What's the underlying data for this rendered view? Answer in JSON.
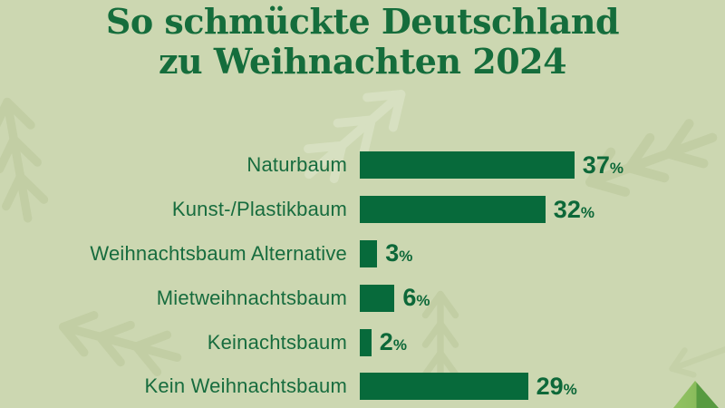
{
  "title": {
    "line1": "So schmückte Deutschland",
    "line2": "zu Weihnachten 2024"
  },
  "chart_data": {
    "type": "bar",
    "orientation": "horizontal",
    "title": "So schmückte Deutschland zu Weihnachten 2024",
    "categories": [
      "Naturbaum",
      "Kunst-/Plastikbaum",
      "Weihnachtsbaum Alternative",
      "Mietweihnachtsbaum",
      "Keinachtsbaum",
      "Kein Weihnachtsbaum"
    ],
    "values": [
      37,
      32,
      3,
      6,
      2,
      29
    ],
    "unit": "%",
    "value_labels": [
      "37%",
      "32%",
      "3%",
      "6%",
      "2%",
      "29%"
    ],
    "xlabel": "",
    "ylabel": "",
    "xlim": [
      0,
      40
    ],
    "grid": false,
    "legend": false,
    "bar_color": "#076a3b",
    "background_color": "#ccd7b1",
    "text_color": "#156d3c"
  },
  "decorations": {
    "branch_icons": [
      "fir-branch-left-edge",
      "fir-branch-top-middle",
      "fir-branch-top-right",
      "fir-branch-bottom-left",
      "fir-branch-bottom-middle",
      "fir-branch-right-edge"
    ],
    "tree_icon": "christmas-tree",
    "branch_dark_color": "#c2cea4",
    "branch_light_color": "#d7e0c1",
    "tree_color_left": "#92c263",
    "tree_color_right": "#579a40"
  }
}
